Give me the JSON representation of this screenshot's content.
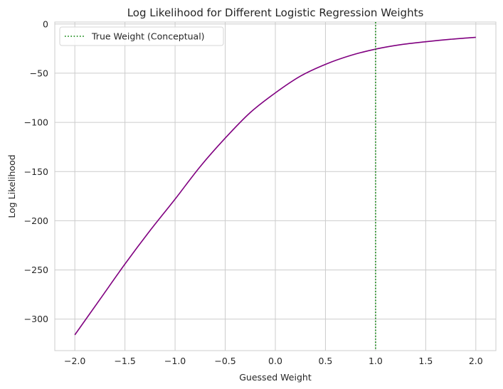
{
  "chart_data": {
    "type": "line",
    "title": "Log Likelihood for Different Logistic Regression Weights",
    "xlabel": "Guessed Weight",
    "ylabel": "Log Likelihood",
    "xlim": [
      -2.2,
      2.2
    ],
    "ylim": [
      -332,
      2
    ],
    "grid": true,
    "legend_position": "top-left",
    "x_ticks": [
      -2.0,
      -1.5,
      -1.0,
      -0.5,
      0.0,
      0.5,
      1.0,
      1.5,
      2.0
    ],
    "x_tick_labels": [
      "−2.0",
      "−1.5",
      "−1.0",
      "−0.5",
      "0.0",
      "0.5",
      "1.0",
      "1.5",
      "2.0"
    ],
    "y_ticks": [
      0,
      -50,
      -100,
      -150,
      -200,
      -250,
      -300
    ],
    "y_tick_labels": [
      "0",
      "−50",
      "−100",
      "−150",
      "−200",
      "−250",
      "−300"
    ],
    "series": [
      {
        "color": "#800080",
        "x": [
          -2.0,
          -1.75,
          -1.5,
          -1.25,
          -1.0,
          -0.75,
          -0.5,
          -0.25,
          0.0,
          0.25,
          0.5,
          0.75,
          1.0,
          1.25,
          1.5,
          1.75,
          2.0
        ],
        "y": [
          -316,
          -280,
          -244,
          -210,
          -178,
          -145,
          -116,
          -90,
          -70,
          -53,
          -41,
          -32,
          -25.5,
          -21,
          -18,
          -15.5,
          -13.5
        ]
      }
    ],
    "reference_lines": [
      {
        "name": "True Weight (Conceptual)",
        "x": 1.0,
        "color": "#008000",
        "style": "dotted"
      }
    ],
    "colors": {
      "grid": "#cccccc",
      "spine": "#cccccc",
      "text": "#262626"
    }
  }
}
